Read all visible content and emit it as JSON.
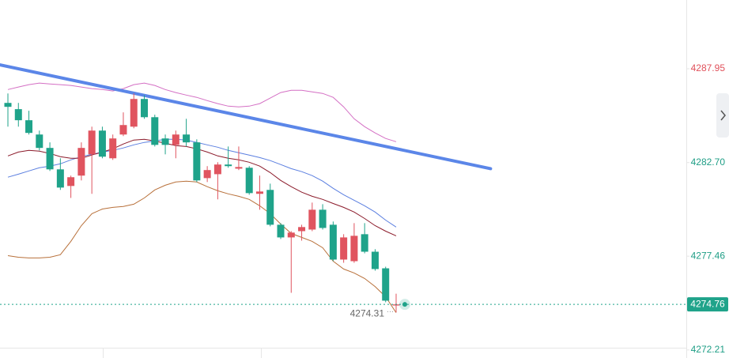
{
  "chart_data": {
    "type": "candlestick",
    "ylim": [
      4271.76,
      4291.8
    ],
    "yticks": [
      4287.95,
      {
        "value": 4282.7,
        "label": "4282.70"
      },
      4277.46,
      4272.21
    ],
    "ytick_colors": [
      "#e0505a",
      "#1f9e86",
      "#1f9e86",
      "#1f9e86"
    ],
    "up_color": "#e0545f",
    "down_color": "#1fa38a",
    "candles": {
      "open": [
        4286.04,
        4285.69,
        4285.07,
        4284.27,
        4283.52,
        4282.32,
        4281.39,
        4281.97,
        4283.16,
        4284.49,
        4282.94,
        4284.27,
        4284.71,
        4286.26,
        4285.24,
        4284.05,
        4283.69,
        4284.27,
        4283.83,
        4281.83,
        4282.05,
        4282.59,
        4282.36,
        4282.41,
        4280.95,
        4281.17,
        4279.22,
        4278.51,
        4278.86,
        4278.95,
        4280.06,
        4279.22,
        4277.27,
        4277.18,
        4278.69,
        4277.71,
        4276.78,
        4274.7
      ],
      "high": [
        4286.57,
        4286.04,
        4285.6,
        4284.49,
        4283.83,
        4282.94,
        4281.97,
        4283.83,
        4284.71,
        4284.71,
        4284.27,
        4285.51,
        4286.57,
        4286.48,
        4285.38,
        4284.27,
        4284.49,
        4285.15,
        4284.0,
        4282.5,
        4282.72,
        4283.6,
        4283.6,
        4282.5,
        4281.97,
        4281.52,
        4279.31,
        4278.86,
        4279.22,
        4280.46,
        4280.37,
        4279.4,
        4278.69,
        4279.31,
        4279.31,
        4277.85,
        4276.87,
        4275.36
      ],
      "low": [
        4284.71,
        4284.71,
        4284.27,
        4283.38,
        4282.23,
        4281.17,
        4280.72,
        4281.7,
        4280.95,
        4282.94,
        4282.85,
        4284.18,
        4284.62,
        4285.15,
        4283.6,
        4283.16,
        4282.94,
        4283.6,
        4281.61,
        4281.61,
        4280.64,
        4282.41,
        4282.28,
        4280.9,
        4280.06,
        4279.13,
        4278.42,
        4275.41,
        4278.33,
        4278.86,
        4278.95,
        4277.18,
        4277.09,
        4277.09,
        4277.62,
        4276.65,
        4274.88,
        4274.31
      ],
      "close": [
        4285.82,
        4285.07,
        4284.36,
        4283.52,
        4282.32,
        4281.3,
        4281.88,
        4283.52,
        4284.49,
        4283.03,
        4284.05,
        4284.8,
        4286.26,
        4285.24,
        4283.69,
        4283.69,
        4284.27,
        4283.83,
        4281.7,
        4282.28,
        4282.59,
        4282.5,
        4282.45,
        4280.99,
        4281.08,
        4279.22,
        4278.51,
        4278.78,
        4279.09,
        4280.06,
        4279.04,
        4277.27,
        4278.51,
        4278.6,
        4277.71,
        4276.74,
        4274.97,
        4274.76
      ]
    },
    "overlays": [
      {
        "color": "#d46fc4",
        "values": [
          4286.79,
          4286.93,
          4287.06,
          4287.15,
          4287.1,
          4287.06,
          4287.02,
          4286.93,
          4286.84,
          4286.79,
          4286.71,
          4286.84,
          4287.06,
          4287.15,
          4287.02,
          4286.79,
          4286.62,
          4286.48,
          4286.35,
          4286.17,
          4286.0,
          4285.86,
          4285.82,
          4285.86,
          4286.0,
          4286.31,
          4286.62,
          4286.75,
          4286.75,
          4286.66,
          4286.57,
          4286.35,
          4285.82,
          4285.15,
          4284.71,
          4284.36,
          4284.05,
          4283.87
        ]
      },
      {
        "color": "#5b7fe0",
        "values": [
          4281.88,
          4282.05,
          4282.23,
          4282.41,
          4282.5,
          4282.63,
          4282.85,
          4283.03,
          4283.16,
          4283.29,
          4283.38,
          4283.52,
          4283.69,
          4283.83,
          4283.91,
          4284.0,
          4284.0,
          4283.96,
          4283.83,
          4283.69,
          4283.56,
          4283.38,
          4283.25,
          4283.12,
          4282.98,
          4282.81,
          4282.59,
          4282.36,
          4282.19,
          4281.97,
          4281.66,
          4281.26,
          4280.9,
          4280.59,
          4280.28,
          4279.93,
          4279.48,
          4279.09
        ]
      },
      {
        "color": "#8b1a2a",
        "values": [
          4283.07,
          4283.29,
          4283.38,
          4283.34,
          4283.21,
          4283.03,
          4282.94,
          4282.94,
          4283.12,
          4283.29,
          4283.47,
          4283.74,
          4283.96,
          4284.0,
          4283.91,
          4283.78,
          4283.65,
          4283.6,
          4283.47,
          4283.29,
          4283.07,
          4282.94,
          4282.85,
          4282.72,
          4282.5,
          4282.14,
          4281.7,
          4281.35,
          4281.04,
          4280.81,
          4280.64,
          4280.41,
          4280.19,
          4279.93,
          4279.57,
          4279.17,
          4278.86,
          4278.6
        ]
      },
      {
        "color": "#b8703a",
        "values": [
          4277.49,
          4277.4,
          4277.36,
          4277.36,
          4277.4,
          4277.54,
          4278.29,
          4279.17,
          4279.84,
          4280.1,
          4280.19,
          4280.24,
          4280.37,
          4280.72,
          4281.17,
          4281.43,
          4281.61,
          4281.66,
          4281.61,
          4281.35,
          4281.12,
          4280.95,
          4280.81,
          4280.64,
          4280.28,
          4279.84,
          4279.26,
          4278.73,
          4278.51,
          4278.29,
          4277.93,
          4277.18,
          4276.74,
          4276.52,
          4276.21,
          4275.76,
          4275.19,
          4274.3
        ]
      }
    ],
    "trendline": {
      "color": "#5b86e8",
      "x": [
        -0.75,
        46.0
      ],
      "values": [
        4288.17,
        4282.36
      ]
    }
  }
}
